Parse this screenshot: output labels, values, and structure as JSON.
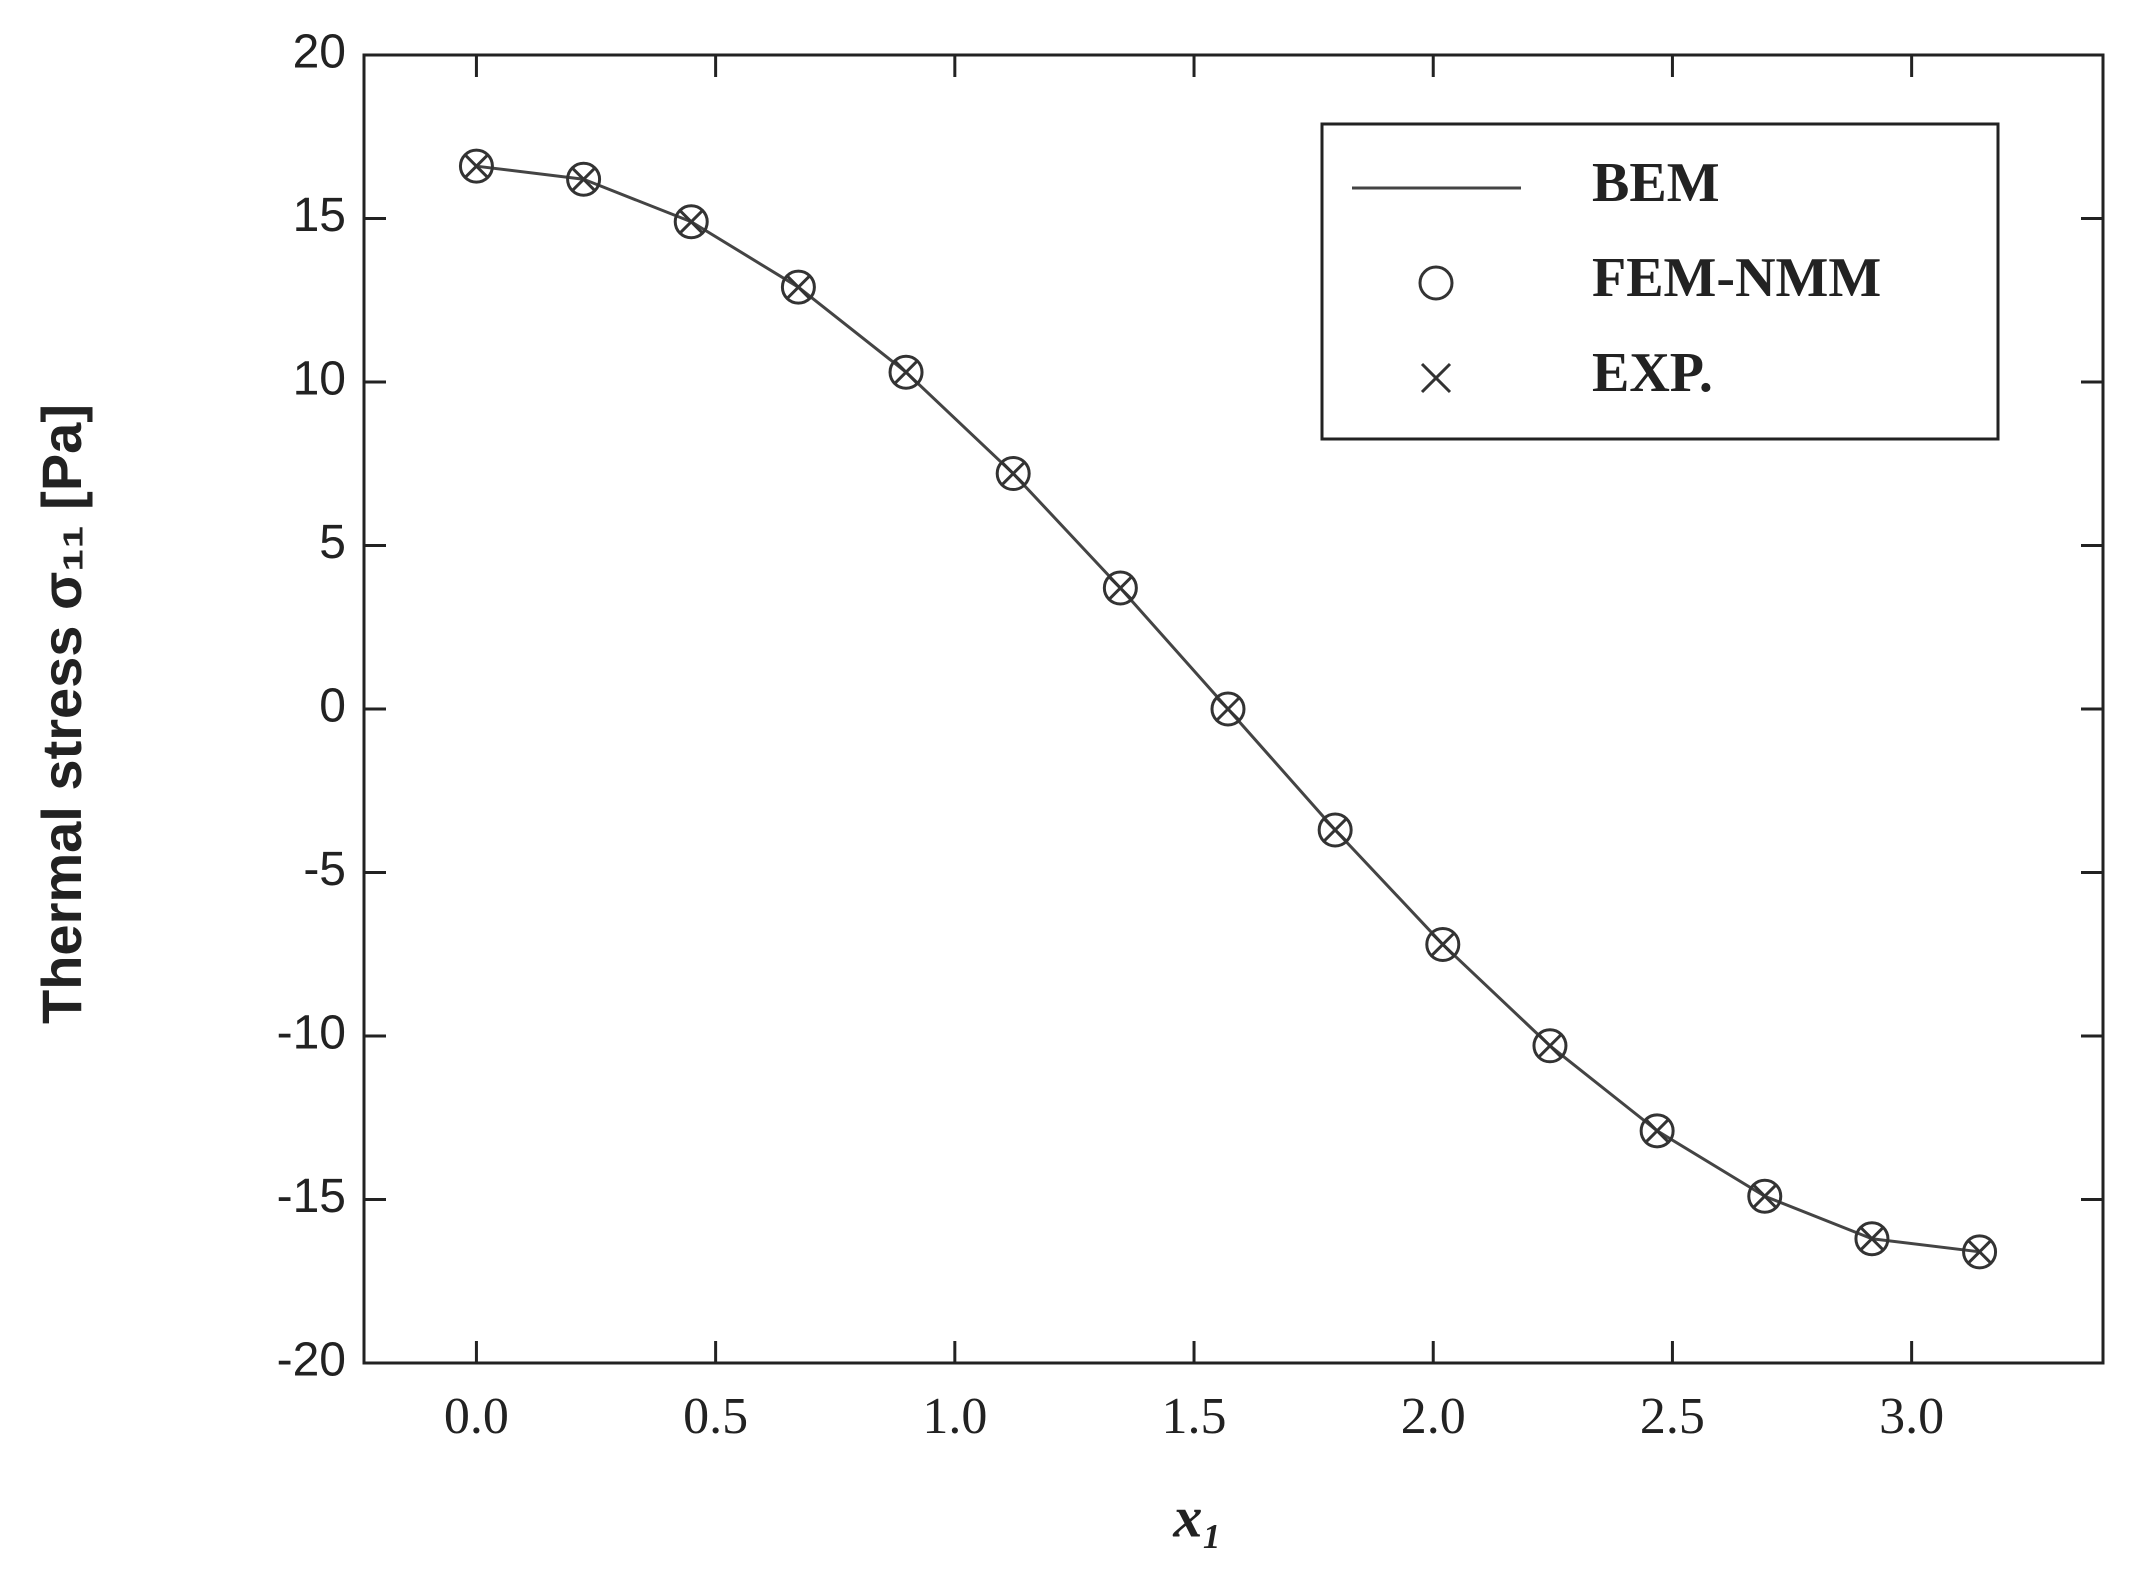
{
  "chart_data": {
    "type": "line",
    "xlabel": "x₁",
    "ylabel": "Thermal stress σ₁₁ [Pa]",
    "x": [
      0,
      0.224,
      0.449,
      0.673,
      0.898,
      1.122,
      1.346,
      1.571,
      1.795,
      2.02,
      2.244,
      2.468,
      2.693,
      2.917,
      3.142
    ],
    "series": [
      {
        "name": "BEM",
        "color": "#444444",
        "marker": "none",
        "values": [
          16.6,
          16.2,
          14.9,
          12.9,
          10.3,
          7.2,
          3.7,
          0,
          -3.7,
          -7.2,
          -10.3,
          -12.9,
          -14.9,
          -16.2,
          -16.6
        ]
      },
      {
        "name": "FEM-NMM",
        "color": "#333333",
        "marker": "circle",
        "values": [
          16.6,
          16.2,
          14.9,
          12.9,
          10.3,
          7.2,
          3.7,
          0,
          -3.7,
          -7.2,
          -10.3,
          -12.9,
          -14.9,
          -16.2,
          -16.6
        ]
      },
      {
        "name": "EXP.",
        "color": "#333333",
        "marker": "x",
        "values": [
          16.6,
          16.2,
          14.9,
          12.9,
          10.3,
          7.2,
          3.7,
          0,
          -3.7,
          -7.2,
          -10.3,
          -12.9,
          -14.9,
          -16.2,
          -16.6
        ]
      }
    ],
    "xlim": [
      -0.235,
      3.4
    ],
    "ylim": [
      -20,
      20
    ],
    "xticks": [
      {
        "value": 0,
        "label": "0.0"
      },
      0.5,
      {
        "value": 1,
        "label": "1.0"
      },
      1.5,
      {
        "value": 2,
        "label": "2.0"
      },
      2.5,
      {
        "value": 3,
        "label": "3.0"
      }
    ],
    "yticks": [
      -20,
      -15,
      -10,
      -5,
      0,
      5,
      10,
      15,
      20
    ],
    "grid": false,
    "legend": "upper right"
  }
}
